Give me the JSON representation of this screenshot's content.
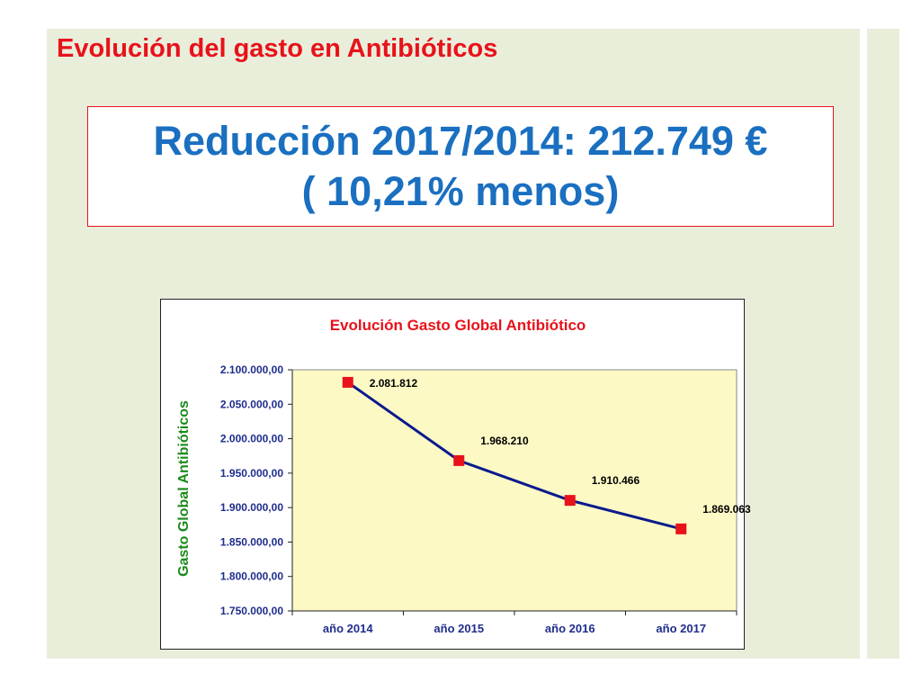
{
  "slide": {
    "title": "Evolución del gasto en Antibióticos",
    "callout_line1": "Reducción 2017/2014: 212.749 €",
    "callout_line2": "( 10,21% menos)"
  },
  "colors": {
    "slide_title": "#e8121a",
    "callout_text": "#1a6fc0",
    "callout_border": "#e8121a",
    "chart_title": "#e8121a",
    "ylabel": "#1a8a1a",
    "axis_text": "#1f2d8c",
    "plot_area": "#fcf9c5",
    "line": "#0b1a8c",
    "marker": "#e8121a"
  },
  "chart_data": {
    "type": "line",
    "title": "Evolución Gasto Global Antibiótico",
    "xlabel": "",
    "ylabel": "Gasto Global Antibióticos",
    "categories": [
      "año 2014",
      "año 2015",
      "año 2016",
      "año 2017"
    ],
    "values": [
      2081812,
      1968210,
      1910466,
      1869063
    ],
    "data_labels": [
      "2.081.812",
      "1.968.210",
      "1.910.466",
      "1.869.063"
    ],
    "yticks": [
      1750000,
      1800000,
      1850000,
      1900000,
      1950000,
      2000000,
      2050000,
      2100000
    ],
    "ytick_labels": [
      "1.750.000,00",
      "1.800.000,00",
      "1.850.000,00",
      "1.900.000,00",
      "1.950.000,00",
      "2.000.000,00",
      "2.050.000,00",
      "2.100.000,00"
    ],
    "ylim": [
      1750000,
      2100000
    ],
    "grid": false,
    "legend": "none",
    "marker": "square"
  }
}
